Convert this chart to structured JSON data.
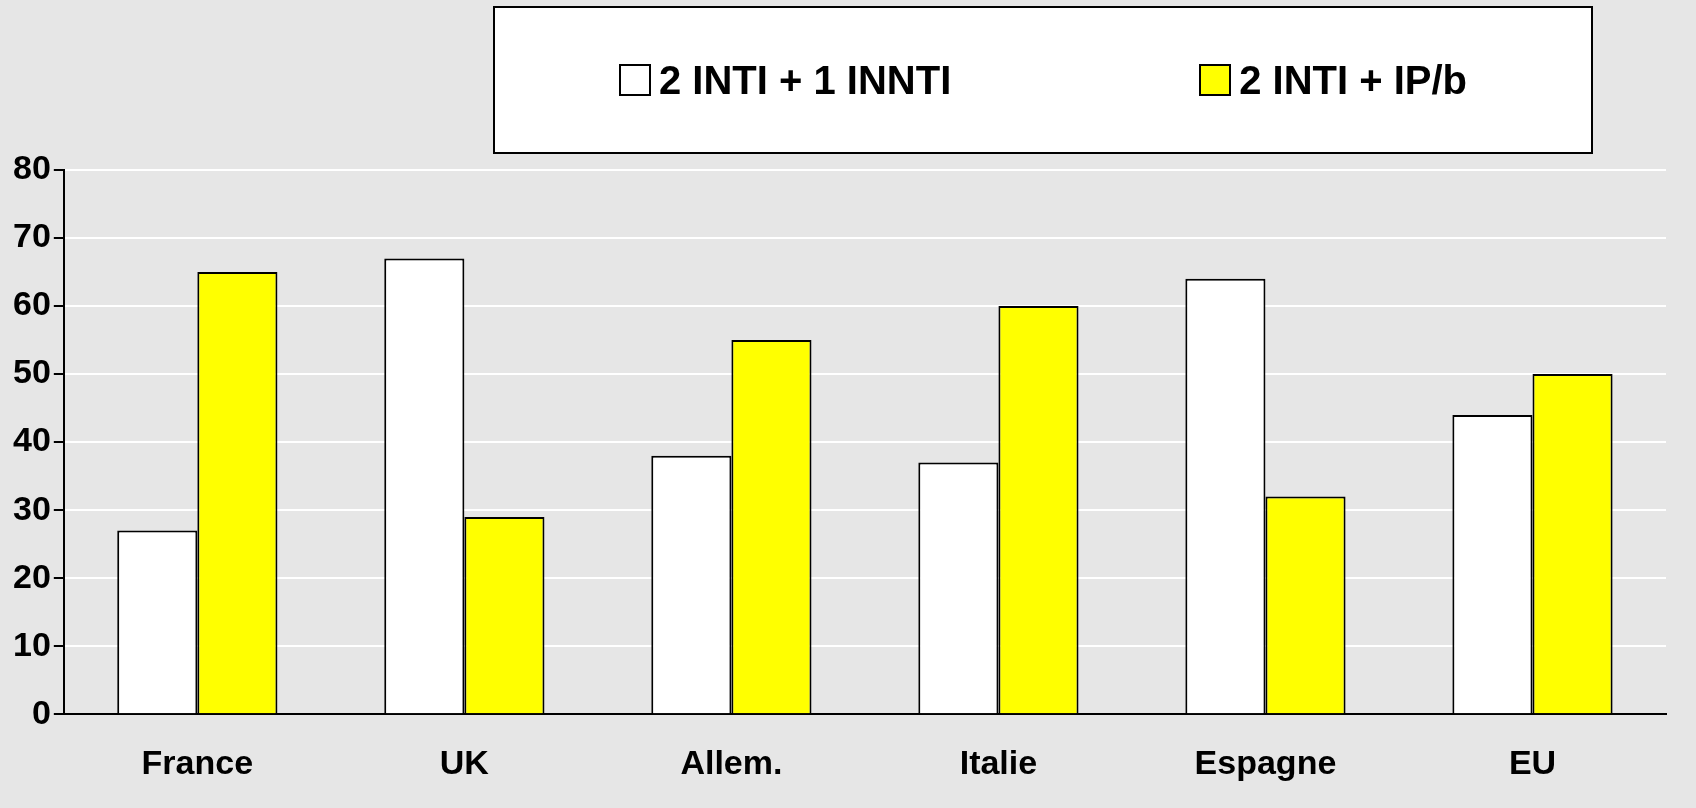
{
  "chart_data": {
    "type": "bar",
    "categories": [
      "France",
      "UK",
      "Allem.",
      "Italie",
      "Espagne",
      "EU"
    ],
    "series": [
      {
        "name": "2 INTI + 1 INNTI",
        "color": "#ffffff",
        "values": [
          27,
          67,
          38,
          37,
          64,
          44
        ]
      },
      {
        "name": "2 INTI + IP/b",
        "color": "#ffff00",
        "values": [
          65,
          29,
          55,
          60,
          32,
          50
        ]
      }
    ],
    "ylim": [
      0,
      80
    ],
    "yticks": [
      0,
      10,
      20,
      30,
      40,
      50,
      60,
      70,
      80
    ],
    "grid": "y",
    "legend": "top"
  }
}
